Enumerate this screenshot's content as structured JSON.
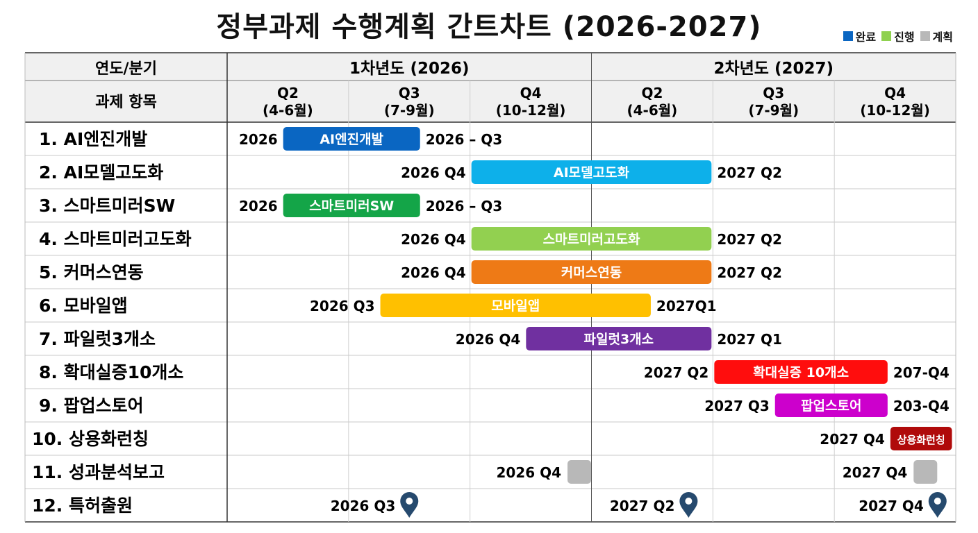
{
  "title": "정부과제 수행계획 간트차트 (2026-2027)",
  "legend": [
    {
      "label": "완료",
      "color": "#0a66c2"
    },
    {
      "label": "진행",
      "color": "#8fd14f"
    },
    {
      "label": "계획",
      "color": "#b8b8b8"
    }
  ],
  "header": {
    "row1_label": "연도/분기",
    "row2_label": "과제 항목",
    "years": [
      {
        "label": "1차년도 (2026)",
        "span": 3
      },
      {
        "label": "2차년도 (2027)",
        "span": 3
      }
    ],
    "quarters": [
      {
        "q": "Q2",
        "range": "(4-6월)"
      },
      {
        "q": "Q3",
        "range": "(7-9월)"
      },
      {
        "q": "Q4",
        "range": "(10-12월)"
      },
      {
        "q": "Q2",
        "range": "(4-6월)"
      },
      {
        "q": "Q3",
        "range": "(7-9월)"
      },
      {
        "q": "Q4",
        "range": "(10-12월)"
      }
    ]
  },
  "chart_data": {
    "type": "gantt",
    "title": "정부과제 수행계획 간트차트 (2026-2027)",
    "x_axis": [
      "2026 Q2",
      "2026 Q3",
      "2026 Q4",
      "2027 Q2",
      "2027 Q3",
      "2027 Q4"
    ],
    "tasks": [
      {
        "name": "1. AI엔진개발",
        "bar_label": "AI엔진개발",
        "start": 0.45,
        "end": 1.6,
        "color": "#0a66c2",
        "left_label": "2026",
        "right_label": "2026 – Q3"
      },
      {
        "name": "2. AI모델고도화",
        "bar_label": "AI모델고도화",
        "start": 2.0,
        "end": 4.0,
        "color": "#0db0ea",
        "left_label": "2026 Q4",
        "right_label": "2027 Q2"
      },
      {
        "name": "3. 스마트미러SW",
        "bar_label": "스마트미러SW",
        "start": 0.45,
        "end": 1.6,
        "color": "#14a548",
        "left_label": "2026",
        "right_label": "2026 – Q3"
      },
      {
        "name": "4. 스마트미러고도화",
        "bar_label": "스마트미러고도화",
        "start": 2.0,
        "end": 4.0,
        "color": "#92d050",
        "left_label": "2026 Q4",
        "right_label": "2027 Q2"
      },
      {
        "name": "5. 커머스연동",
        "bar_label": "커머스연동",
        "start": 2.0,
        "end": 4.0,
        "color": "#ee7a16",
        "left_label": "2026 Q4",
        "right_label": "2027 Q2"
      },
      {
        "name": "6. 모바일앱",
        "bar_label": "모바일앱",
        "start": 1.25,
        "end": 3.5,
        "color": "#ffc000",
        "left_label": "2026 Q3",
        "right_label": "2027Q1"
      },
      {
        "name": "7. 파일럿3개소",
        "bar_label": "파일럿3개소",
        "start": 2.45,
        "end": 4.0,
        "color": "#7030a0",
        "left_label": "2026 Q4",
        "right_label": "2027 Q1"
      },
      {
        "name": "8. 확대실증10개소",
        "bar_label": "확대실증 10개소",
        "start": 4.0,
        "end": 5.45,
        "color": "#ff0d0d",
        "left_label": "2027 Q2",
        "right_label": "207-Q4"
      },
      {
        "name": "9. 팝업스토어",
        "bar_label": "팝업스토어",
        "start": 4.5,
        "end": 5.45,
        "color": "#cc00cc",
        "left_label": "2027 Q3",
        "right_label": "203-Q4"
      },
      {
        "name": "10. 상용화런칭",
        "bar_label": "상용화런칭",
        "start": 5.45,
        "end": 5.98,
        "color": "#b00a0a",
        "left_label": "2027 Q4",
        "right_label": ""
      }
    ],
    "milestones": [
      {
        "task": "11. 성과분석보고",
        "type": "square",
        "color": "#b8b8b8",
        "points": [
          {
            "pos": 2.9,
            "label": "2026 Q4"
          },
          {
            "pos": 5.75,
            "label": "2027 Q4"
          }
        ]
      },
      {
        "task": "12. 특허출원",
        "type": "pin",
        "color": "#264a6e",
        "points": [
          {
            "pos": 1.5,
            "label": "2026 Q3"
          },
          {
            "pos": 3.8,
            "label": "2027 Q2"
          },
          {
            "pos": 5.85,
            "label": "2027 Q4"
          }
        ]
      }
    ]
  }
}
